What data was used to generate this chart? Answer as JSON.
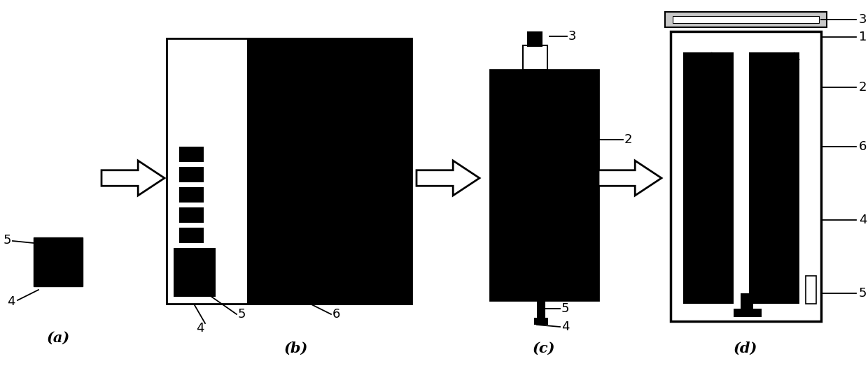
{
  "bg_color": "#ffffff",
  "black": "#000000",
  "white": "#ffffff",
  "gray_light": "#c8c8c8",
  "figure_size": [
    12.4,
    5.37
  ],
  "dpi": 100,
  "labels": {
    "a": "(a)",
    "b": "(b)",
    "c": "(c)",
    "d": "(d)"
  }
}
